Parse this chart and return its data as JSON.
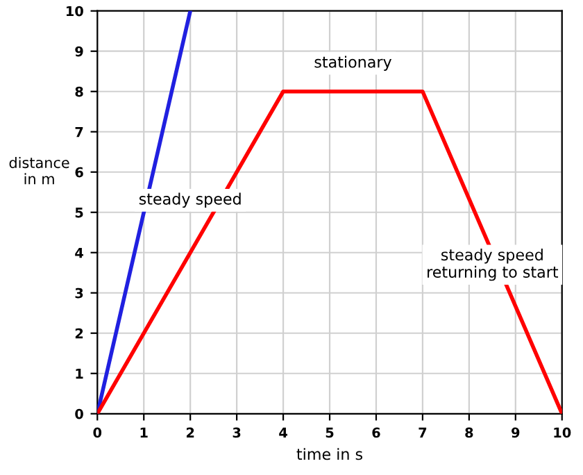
{
  "chart_data": {
    "type": "line",
    "xlabel": "time in s",
    "ylabel": "distance\nin m",
    "series": [
      {
        "color": "#2020e0",
        "x": [
          0,
          2
        ],
        "values": [
          0,
          10
        ]
      },
      {
        "color": "#ff0000",
        "x": [
          0,
          4,
          7,
          10
        ],
        "values": [
          0,
          8,
          8,
          0
        ]
      }
    ],
    "xlim": [
      0,
      10
    ],
    "ylim": [
      0,
      10
    ],
    "xticks": [
      0,
      1,
      2,
      3,
      4,
      5,
      6,
      7,
      8,
      9,
      10
    ],
    "yticks": [
      0,
      1,
      2,
      3,
      4,
      5,
      6,
      7,
      8,
      9,
      10
    ],
    "grid": true,
    "marker": "none",
    "line_style": "solid",
    "annotations": [
      "steady speed",
      "stationary",
      "steady speed\nreturning to start"
    ]
  }
}
